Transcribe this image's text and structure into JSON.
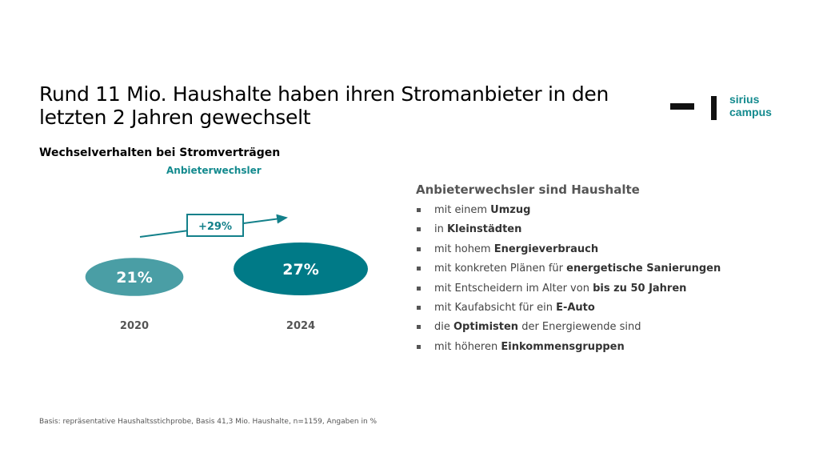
{
  "title": "Rund 11 Mio. Haushalte haben ihren Stromanbieter in den letzten 2 Jahren gewechselt",
  "logo": {
    "line1": "sirius",
    "line2": "campus"
  },
  "subtitle": "Wechselverhalten bei Stromverträgen",
  "chart_data": {
    "type": "bubble",
    "title": "Anbieterwechsler",
    "categories": [
      "2020",
      "2024"
    ],
    "values": [
      21,
      27
    ],
    "value_labels": [
      "21%",
      "27%"
    ],
    "colors": [
      "#4a9ea5",
      "#007a87"
    ],
    "change_label": "+29%"
  },
  "right": {
    "heading": "Anbieterwechsler sind Haushalte",
    "items": [
      {
        "pre": "mit einem ",
        "bold": "Umzug",
        "post": ""
      },
      {
        "pre": "in ",
        "bold": "Kleinstädten",
        "post": ""
      },
      {
        "pre": "mit hohem ",
        "bold": "Energieverbrauch",
        "post": ""
      },
      {
        "pre": "mit konkreten Plänen für ",
        "bold": "energetische Sanierungen",
        "post": ""
      },
      {
        "pre": "mit Entscheidern im Alter von ",
        "bold": "bis zu 50 Jahren",
        "post": ""
      },
      {
        "pre": "mit Kaufabsicht für ein ",
        "bold": "E-Auto",
        "post": ""
      },
      {
        "pre": "die ",
        "bold": "Optimisten",
        "post": " der Energiewende sind"
      },
      {
        "pre": "mit höheren ",
        "bold": "Einkommensgruppen",
        "post": ""
      }
    ]
  },
  "footnote": "Basis: repräsentative Haushaltsstichprobe, Basis 41,3 Mio. Haushalte, n=1159, Angaben in %"
}
